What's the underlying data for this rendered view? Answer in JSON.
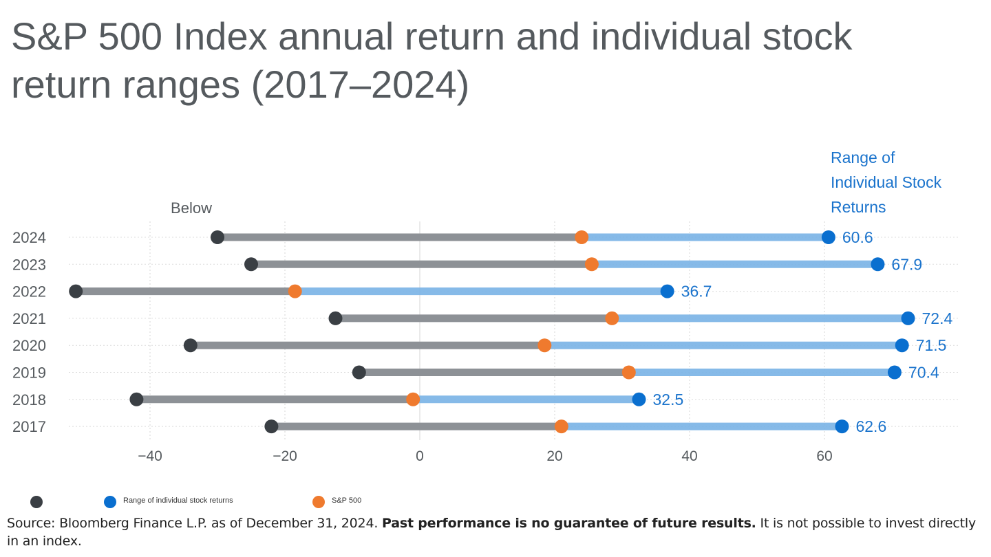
{
  "chart_data": {
    "type": "dumbbell",
    "title": "S&P 500 Index annual return and individual stock return ranges (2017–2024)",
    "annotation_low": "Below",
    "annotation_high": "Range of Individual Stock Returns",
    "annotation_high_lines": [
      "Range of",
      "Individual Stock",
      "Returns"
    ],
    "x_ticks": [
      -40,
      -20,
      0,
      20,
      40,
      60
    ],
    "x_tick_labels": [
      "−40",
      "−20",
      "0",
      "20",
      "40",
      "60"
    ],
    "xlim": [
      -52,
      74
    ],
    "grid": true,
    "colors": {
      "low": "#3a3f44",
      "high": "#0a6fcf",
      "sp500": "#ef7a2e",
      "bar_left": "#8d9196",
      "bar_right": "#79b2e6",
      "label": "#1a73cc"
    },
    "rows": [
      {
        "year": "2024",
        "low": -30,
        "sp500": 24,
        "high": 60.6,
        "high_label": "60.6"
      },
      {
        "year": "2023",
        "low": -25,
        "sp500": 25.5,
        "high": 67.9,
        "high_label": "67.9"
      },
      {
        "year": "2022",
        "low": -51,
        "sp500": -18.5,
        "high": 36.7,
        "high_label": "36.7"
      },
      {
        "year": "2021",
        "low": -12.5,
        "sp500": 28.5,
        "high": 72.4,
        "high_label": "72.4"
      },
      {
        "year": "2020",
        "low": -34,
        "sp500": 18.5,
        "high": 71.5,
        "high_label": "71.5"
      },
      {
        "year": "2019",
        "low": -9,
        "sp500": 31,
        "high": 70.4,
        "high_label": "70.4"
      },
      {
        "year": "2018",
        "low": -42,
        "sp500": -1,
        "high": 32.5,
        "high_label": "32.5"
      },
      {
        "year": "2017",
        "low": -22,
        "sp500": 21,
        "high": 62.6,
        "high_label": "62.6"
      }
    ],
    "legend": {
      "range_label": "Range of individual stock returns",
      "sp500_label": "S&P 500"
    }
  },
  "source": {
    "part1": "Source: Bloomberg Finance L.P. as of December 31, 2024. ",
    "bold": "Past performance is no guarantee of future results.",
    "part2": " It is not possible to invest directly in an index."
  }
}
